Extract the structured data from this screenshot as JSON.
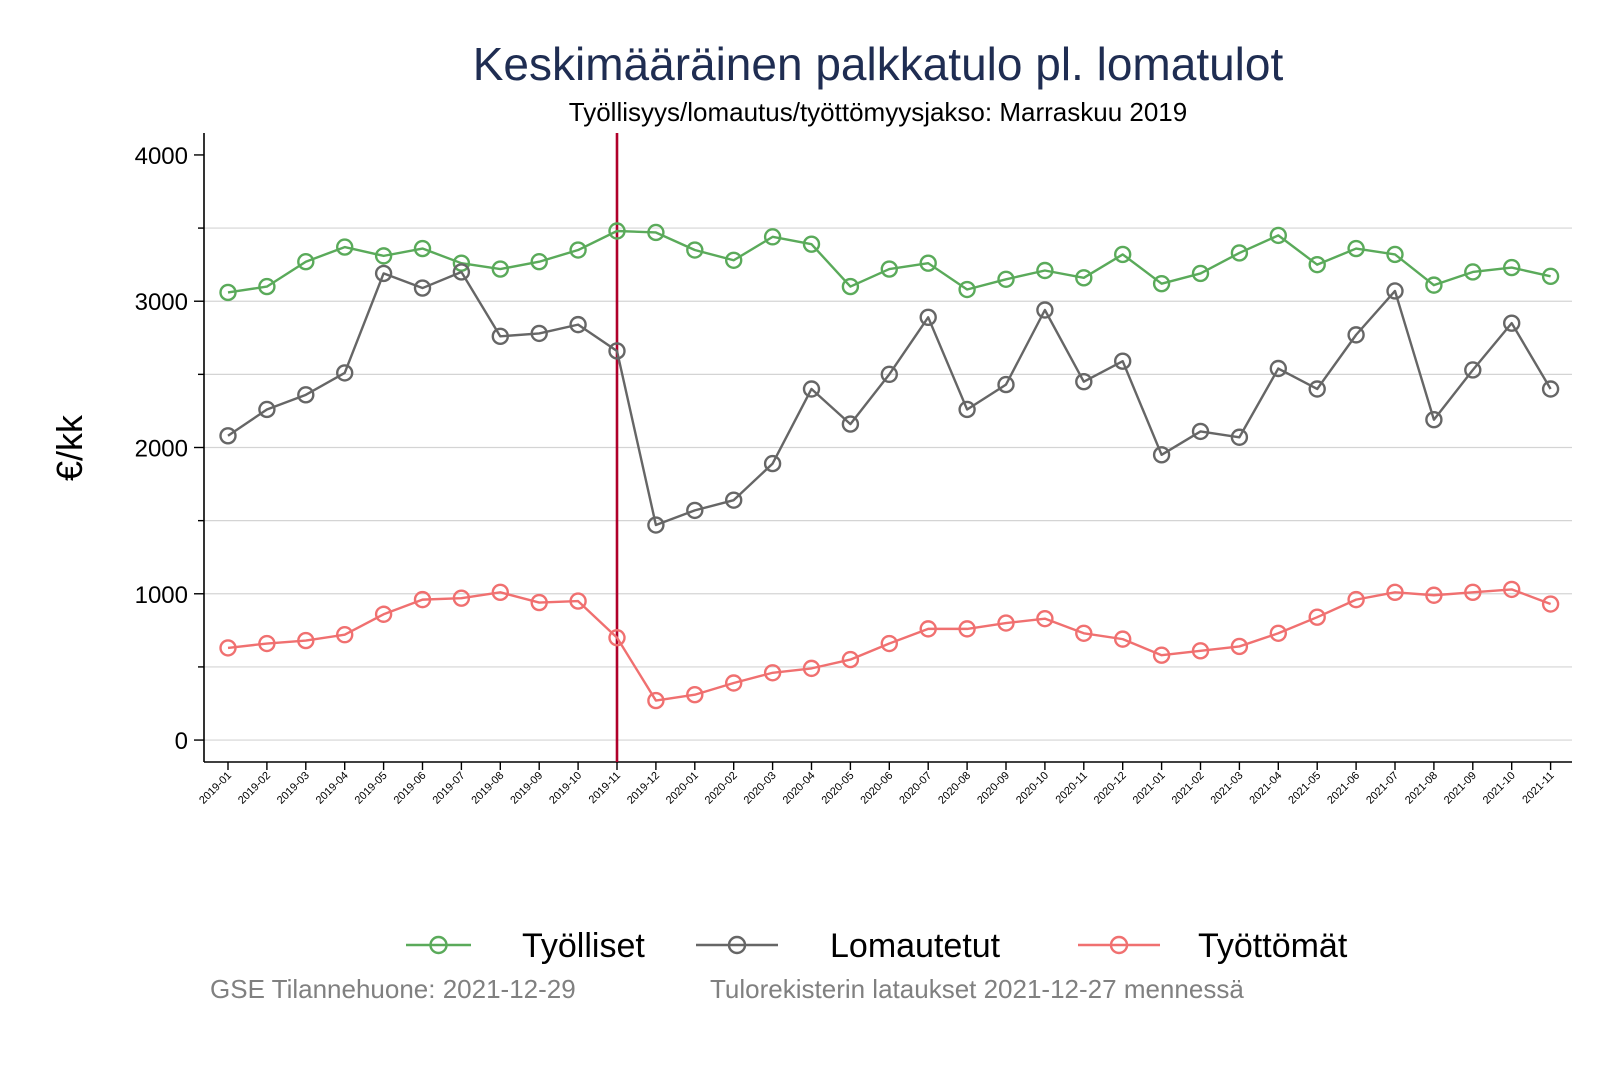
{
  "chart_data": {
    "type": "line",
    "title": "Keskimääräinen palkkatulo pl. lomatulot",
    "subtitle": "Työllisyys/lomautus/työttömyysjakso: Marraskuu 2019",
    "ylabel": "€/kk",
    "xlabel": "",
    "ylim": [
      -150,
      4150
    ],
    "yticks": [
      0,
      1000,
      2000,
      3000,
      4000
    ],
    "grid": true,
    "legend_position": "bottom",
    "reference_line": {
      "x": "2019-11",
      "color": "#b0002a"
    },
    "x": [
      "2019-01",
      "2019-02",
      "2019-03",
      "2019-04",
      "2019-05",
      "2019-06",
      "2019-07",
      "2019-08",
      "2019-09",
      "2019-10",
      "2019-11",
      "2019-12",
      "2020-01",
      "2020-02",
      "2020-03",
      "2020-04",
      "2020-05",
      "2020-06",
      "2020-07",
      "2020-08",
      "2020-09",
      "2020-10",
      "2020-11",
      "2020-12",
      "2021-01",
      "2021-02",
      "2021-03",
      "2021-04",
      "2021-05",
      "2021-06",
      "2021-07",
      "2021-08",
      "2021-09",
      "2021-10",
      "2021-11"
    ],
    "series": [
      {
        "name": "Työlliset",
        "color": "#5aaa5a",
        "values": [
          3060,
          3100,
          3270,
          3370,
          3310,
          3360,
          3260,
          3220,
          3270,
          3350,
          3480,
          3470,
          3350,
          3280,
          3440,
          3390,
          3100,
          3220,
          3260,
          3080,
          3150,
          3210,
          3160,
          3320,
          3120,
          3190,
          3330,
          3450,
          3250,
          3360,
          3320,
          3110,
          3200,
          3230,
          3170
        ]
      },
      {
        "name": "Lomautetut",
        "color": "#666666",
        "values": [
          2080,
          2260,
          2360,
          2510,
          3190,
          3090,
          3200,
          2760,
          2780,
          2840,
          2660,
          1470,
          1570,
          1640,
          1890,
          2400,
          2160,
          2500,
          2890,
          2260,
          2430,
          2940,
          2450,
          2590,
          1950,
          2110,
          2070,
          2540,
          2400,
          2770,
          3070,
          2190,
          2530,
          2850,
          2400
        ]
      },
      {
        "name": "Työttömät",
        "color": "#f07070",
        "values": [
          630,
          660,
          680,
          720,
          860,
          960,
          970,
          1010,
          940,
          950,
          700,
          270,
          310,
          390,
          460,
          490,
          550,
          660,
          760,
          760,
          800,
          830,
          730,
          690,
          580,
          610,
          640,
          730,
          840,
          960,
          1010,
          990,
          1010,
          1030,
          930
        ]
      }
    ]
  },
  "footer": {
    "source": "GSE Tilannehuone: 2021-12-29",
    "note": "Tulorekisterin lataukset 2021-12-27 mennessä"
  }
}
